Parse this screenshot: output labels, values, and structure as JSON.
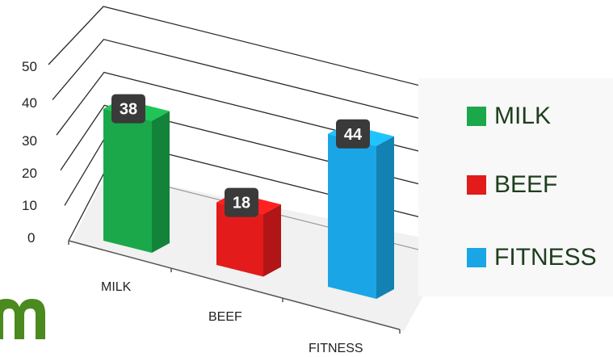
{
  "chart_data": {
    "type": "bar",
    "categories": [
      "MILK",
      "BEEF",
      "FITNESS"
    ],
    "values": [
      38,
      18,
      44
    ],
    "ylim": [
      0,
      50
    ],
    "yticks": [
      "0",
      "10",
      "20",
      "30",
      "40",
      "50"
    ],
    "colors": [
      "#1aa84a",
      "#e31b1b",
      "#1aa6e6"
    ],
    "data_labels": [
      "38",
      "18",
      "44"
    ],
    "grid": true,
    "legend": {
      "position": "right",
      "items": [
        {
          "label": "MILK",
          "color": "#1aa84a"
        },
        {
          "label": "BEEF",
          "color": "#e31b1b"
        },
        {
          "label": "FITNESS",
          "color": "#1aa6e6"
        }
      ]
    }
  }
}
